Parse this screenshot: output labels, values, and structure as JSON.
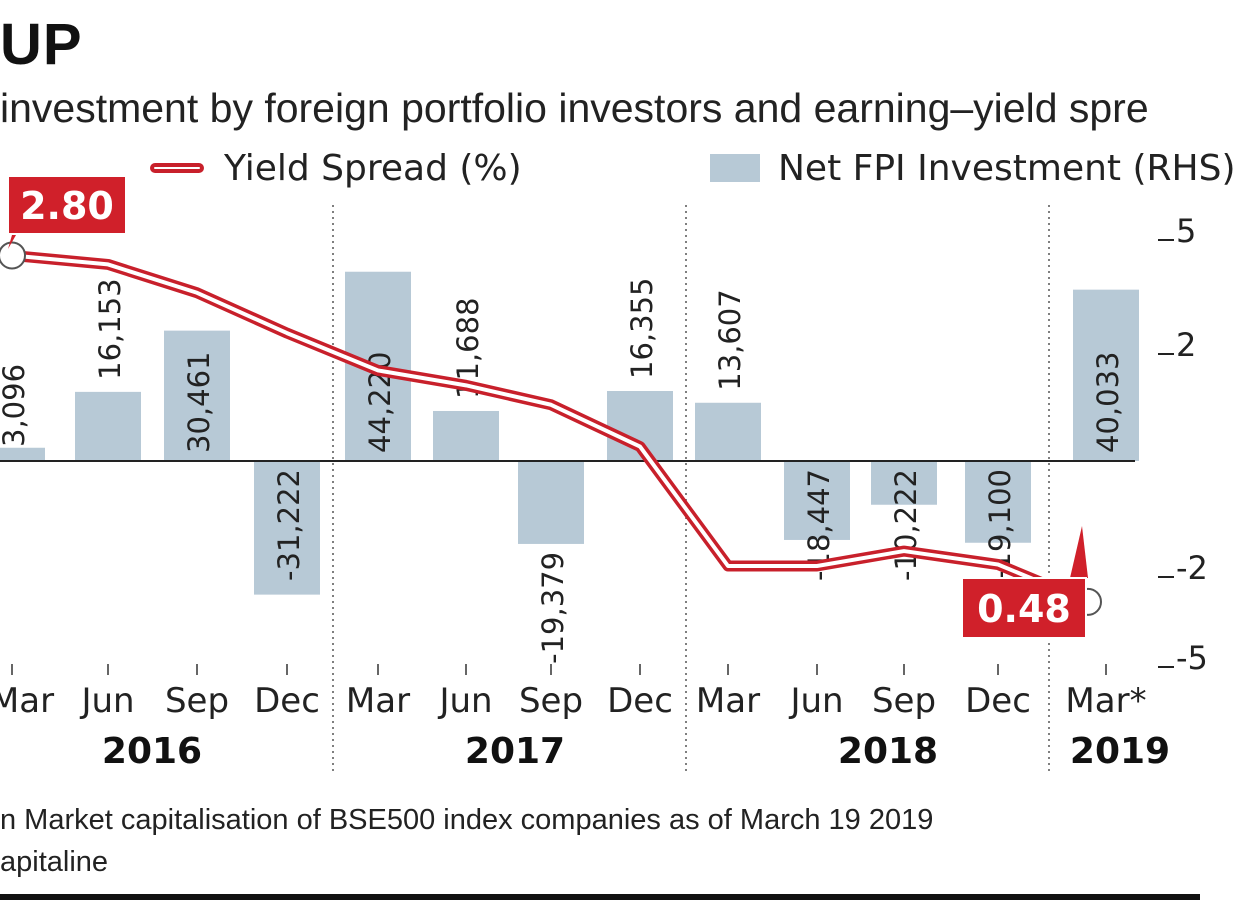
{
  "title": "UP",
  "subtitle": "investment by foreign portfolio investors and earning–yield spre",
  "legend": {
    "line_label": "Yield Spread (%)",
    "bar_label": "Net FPI Investment (RHS)"
  },
  "colors": {
    "line": "#c8202b",
    "bar": "#b7c9d6",
    "callout": "#d0202a",
    "text": "#222222"
  },
  "chart_data": {
    "type": "bar",
    "categories": [
      "Mar",
      "Jun",
      "Sep",
      "Dec",
      "Mar",
      "Jun",
      "Sep",
      "Dec",
      "Mar",
      "Jun",
      "Sep",
      "Dec",
      "Mar*"
    ],
    "years": [
      "2016",
      "2017",
      "2018",
      "2019"
    ],
    "series": [
      {
        "name": "Net FPI Investment (RHS)",
        "kind": "bar",
        "axis": "right",
        "values": [
          3096,
          16153,
          30461,
          -31222,
          44220,
          11688,
          -19379,
          16355,
          13607,
          -18447,
          -10222,
          -19100,
          40033
        ],
        "labels": [
          "3,096",
          "16,153",
          "30,461",
          "-31,222",
          "44,220",
          "11,688",
          "-19,379",
          "16,355",
          "13,607",
          "-18,447",
          "-10,222",
          "-19,100",
          "40,033"
        ]
      },
      {
        "name": "Yield Spread (%)",
        "kind": "line",
        "axis": "left",
        "values": [
          2.8,
          2.74,
          2.55,
          2.28,
          2.03,
          1.93,
          1.8,
          1.52,
          0.72,
          0.72,
          0.82,
          0.73,
          0.48
        ]
      }
    ],
    "callouts": [
      {
        "point": 0,
        "text": "2.80"
      },
      {
        "point": 12,
        "text": "0.48"
      }
    ],
    "right_axis": {
      "ticks": [
        "5",
        "2",
        "-2",
        "-5"
      ],
      "ylim": [
        -50000,
        50000
      ]
    },
    "left_axis": {
      "ylim": [
        0,
        3.4
      ]
    }
  },
  "footnotes": [
    "n Market capitalisation of BSE500 index companies as of March 19 2019",
    "apitaline"
  ]
}
